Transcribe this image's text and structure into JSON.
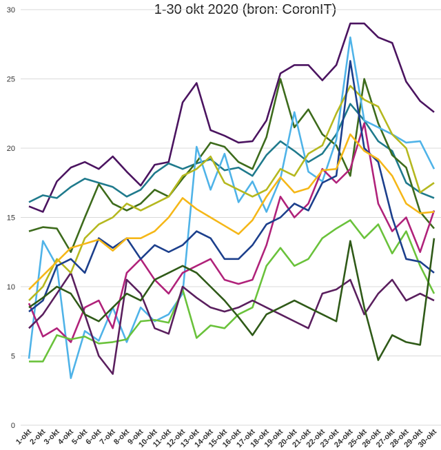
{
  "chart_data": {
    "type": "line",
    "title": "1-30 okt 2020 (bron: CoronIT)",
    "categories": [
      "1-okt",
      "2-okt",
      "3-okt",
      "4-okt",
      "5-okt",
      "6-okt",
      "7-okt",
      "8-okt",
      "9-okt",
      "10-okt",
      "11-okt",
      "12-okt",
      "13-okt",
      "14-okt",
      "15-okt",
      "16-okt",
      "17-okt",
      "18-okt",
      "19-okt",
      "20-okt",
      "21-okt",
      "22-okt",
      "23-okt",
      "24-okt",
      "25-okt",
      "26-okt",
      "27-okt",
      "28-okt",
      "29-okt",
      "30-okt"
    ],
    "ylim": [
      0,
      30
    ],
    "yticks": [
      0,
      5,
      10,
      15,
      20,
      25,
      30
    ],
    "grid": true,
    "series": [
      {
        "color": "#4b1460",
        "values": [
          15.8,
          15.4,
          17.6,
          18.6,
          19.0,
          18.5,
          19.4,
          18.3,
          17.3,
          18.8,
          19.0,
          23.3,
          24.7,
          21.3,
          20.9,
          20.4,
          20.5,
          22.0,
          25.4,
          26.0,
          26.0,
          24.9,
          26.0,
          29.0,
          29.0,
          28.0,
          27.6,
          24.8,
          23.4,
          22.6
        ]
      },
      {
        "color": "#1f7a8c",
        "values": [
          16.1,
          16.6,
          16.4,
          17.2,
          17.8,
          17.5,
          17.2,
          16.5,
          17.0,
          18.2,
          18.9,
          18.5,
          18.9,
          19.2,
          18.4,
          18.6,
          18.0,
          19.5,
          20.5,
          19.8,
          19.0,
          19.6,
          21.0,
          23.2,
          22.0,
          20.5,
          19.8,
          17.5,
          16.8,
          16.4
        ]
      },
      {
        "color": "#3d6b1c",
        "values": [
          14.0,
          14.3,
          14.2,
          12.5,
          15.0,
          17.4,
          16.0,
          15.5,
          16.0,
          17.0,
          16.5,
          17.8,
          19.0,
          20.4,
          20.1,
          19.0,
          18.5,
          20.8,
          25.0,
          21.5,
          22.8,
          21.0,
          20.2,
          18.0,
          25.0,
          21.8,
          19.5,
          18.6,
          15.4,
          14.2
        ]
      },
      {
        "color": "#4fb3e8",
        "values": [
          4.8,
          13.3,
          11.5,
          3.4,
          6.8,
          6.1,
          8.5,
          6.0,
          8.5,
          7.5,
          8.0,
          9.5,
          20.1,
          17.0,
          19.6,
          16.1,
          17.6,
          15.4,
          17.8,
          22.6,
          18.3,
          17.6,
          20.6,
          28.0,
          22.0,
          21.5,
          21.0,
          20.4,
          20.5,
          18.5
        ]
      },
      {
        "color": "#b0227a",
        "values": [
          8.8,
          6.4,
          7.0,
          6.0,
          8.5,
          9.0,
          7.0,
          11.0,
          12.0,
          10.5,
          9.5,
          11.0,
          11.5,
          12.0,
          10.5,
          10.2,
          10.5,
          13.0,
          16.5,
          15.0,
          16.0,
          18.5,
          17.5,
          18.5,
          21.8,
          16.0,
          14.0,
          15.0,
          12.5,
          15.5
        ]
      },
      {
        "color": "#6ac23b",
        "values": [
          4.6,
          4.6,
          6.5,
          6.2,
          6.4,
          5.9,
          6.0,
          6.2,
          7.5,
          7.6,
          7.4,
          9.8,
          6.3,
          7.2,
          7.0,
          8.0,
          8.5,
          11.5,
          12.8,
          11.5,
          12.0,
          13.5,
          14.2,
          14.8,
          13.5,
          14.5,
          12.4,
          14.0,
          11.5,
          9.5
        ]
      },
      {
        "color": "#5a1f5e",
        "values": [
          7.0,
          8.0,
          9.5,
          11.0,
          8.0,
          5.0,
          3.7,
          10.5,
          9.5,
          7.0,
          6.6,
          10.0,
          9.2,
          8.5,
          8.2,
          8.5,
          9.0,
          8.5,
          8.0,
          7.5,
          7.0,
          9.5,
          9.8,
          10.5,
          8.0,
          9.5,
          10.5,
          9.0,
          9.5,
          9.0
        ]
      },
      {
        "color": "#b5b81f",
        "values": [
          9.0,
          10.0,
          12.0,
          11.0,
          13.5,
          14.5,
          15.0,
          16.0,
          15.5,
          16.0,
          16.5,
          18.0,
          18.5,
          19.4,
          17.5,
          17.0,
          16.5,
          17.0,
          18.5,
          18.0,
          19.6,
          20.2,
          22.5,
          24.5,
          23.5,
          23.0,
          21.0,
          20.0,
          16.8,
          17.5
        ]
      },
      {
        "color": "#1c3f8c",
        "values": [
          8.2,
          9.0,
          11.5,
          12.0,
          11.0,
          13.5,
          12.8,
          13.5,
          12.0,
          13.0,
          12.5,
          13.0,
          14.0,
          13.5,
          12.0,
          12.0,
          13.0,
          14.5,
          15.0,
          16.0,
          15.5,
          17.5,
          18.0,
          26.3,
          20.0,
          19.0,
          15.0,
          12.0,
          11.8,
          11.0
        ]
      },
      {
        "color": "#2f5a18",
        "values": [
          8.5,
          9.2,
          10.0,
          9.5,
          8.0,
          7.5,
          8.5,
          9.5,
          9.0,
          10.5,
          11.0,
          11.5,
          11.0,
          10.0,
          9.0,
          7.8,
          6.5,
          8.0,
          8.5,
          9.0,
          8.5,
          8.0,
          7.5,
          13.3,
          8.5,
          4.7,
          6.5,
          6.0,
          5.8,
          13.5
        ]
      },
      {
        "color": "#f5b718",
        "values": [
          9.8,
          10.8,
          11.8,
          12.8,
          13.1,
          13.4,
          12.6,
          13.5,
          13.5,
          14.0,
          15.0,
          16.4,
          15.6,
          15.0,
          14.4,
          13.8,
          14.8,
          16.5,
          17.9,
          16.8,
          17.1,
          18.4,
          18.5,
          21.0,
          19.8,
          19.2,
          18.0,
          16.0,
          15.3,
          15.4
        ]
      }
    ]
  }
}
